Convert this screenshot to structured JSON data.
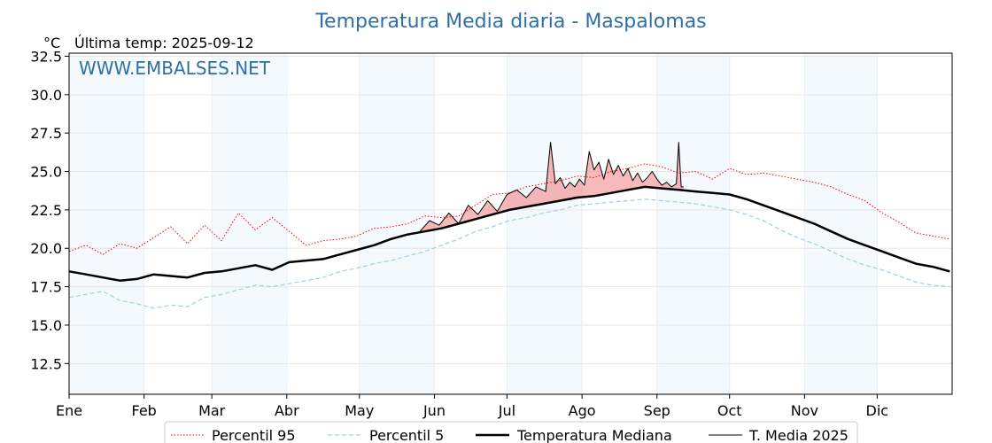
{
  "chart_data": {
    "type": "line",
    "title": "Temperatura Media diaria - Maspalomas",
    "unit_label": "°C",
    "last_temp_label": "Última temp: 2025-09-12",
    "watermark": "WWW.EMBALSES.NET",
    "ylim": [
      10.5,
      32.7
    ],
    "yticks": [
      12.5,
      15.0,
      17.5,
      20.0,
      22.5,
      25.0,
      27.5,
      30.0,
      32.5
    ],
    "xlim": [
      1,
      366
    ],
    "months": [
      {
        "label": "Ene",
        "day": 1
      },
      {
        "label": "Feb",
        "day": 32
      },
      {
        "label": "Mar",
        "day": 60
      },
      {
        "label": "Abr",
        "day": 91
      },
      {
        "label": "May",
        "day": 121
      },
      {
        "label": "Jun",
        "day": 152
      },
      {
        "label": "Jul",
        "day": 182
      },
      {
        "label": "Ago",
        "day": 213
      },
      {
        "label": "Sep",
        "day": 244
      },
      {
        "label": "Oct",
        "day": 274
      },
      {
        "label": "Nov",
        "day": 305
      },
      {
        "label": "Dic",
        "day": 335
      }
    ],
    "grid": true,
    "legend_position": "bottom",
    "series": [
      {
        "name": "Percentil 95",
        "color": "#ff0000",
        "style": "dotted",
        "x": [
          1,
          8,
          15,
          22,
          29,
          36,
          43,
          50,
          57,
          64,
          71,
          78,
          85,
          92,
          99,
          106,
          113,
          120,
          127,
          134,
          141,
          148,
          155,
          162,
          169,
          176,
          183,
          190,
          197,
          204,
          211,
          218,
          225,
          232,
          239,
          246,
          253,
          260,
          267,
          274,
          281,
          288,
          295,
          302,
          309,
          316,
          323,
          330,
          337,
          344,
          351,
          358,
          365
        ],
        "values": [
          19.8,
          20.2,
          19.6,
          20.3,
          20.0,
          20.7,
          21.4,
          20.3,
          21.5,
          20.5,
          22.3,
          21.2,
          22.0,
          21.1,
          20.2,
          20.5,
          20.6,
          20.8,
          21.3,
          21.4,
          21.6,
          22.1,
          22.0,
          22.1,
          22.8,
          23.5,
          23.6,
          24.0,
          24.2,
          24.4,
          24.7,
          24.6,
          25.0,
          25.2,
          25.5,
          25.3,
          24.9,
          25.0,
          24.5,
          25.2,
          24.8,
          24.9,
          24.7,
          24.5,
          24.3,
          24.0,
          23.5,
          23.1,
          22.3,
          21.7,
          21.0,
          20.8,
          20.6
        ]
      },
      {
        "name": "Percentil 5",
        "color": "#9fd0e0",
        "style": "dashed",
        "x": [
          1,
          8,
          15,
          22,
          29,
          36,
          43,
          50,
          57,
          64,
          71,
          78,
          85,
          92,
          99,
          106,
          113,
          120,
          127,
          134,
          141,
          148,
          155,
          162,
          169,
          176,
          183,
          190,
          197,
          204,
          211,
          218,
          225,
          232,
          239,
          246,
          253,
          260,
          267,
          274,
          281,
          288,
          295,
          302,
          309,
          316,
          323,
          330,
          337,
          344,
          351,
          358,
          365
        ],
        "values": [
          16.8,
          17.0,
          17.2,
          16.6,
          16.4,
          16.1,
          16.3,
          16.2,
          16.8,
          17.0,
          17.3,
          17.6,
          17.5,
          17.7,
          17.9,
          18.1,
          18.5,
          18.7,
          19.0,
          19.2,
          19.5,
          19.8,
          20.2,
          20.6,
          21.1,
          21.4,
          21.8,
          22.0,
          22.3,
          22.5,
          22.8,
          22.9,
          23.0,
          23.1,
          23.2,
          23.1,
          23.0,
          22.9,
          22.7,
          22.5,
          22.2,
          21.8,
          21.2,
          20.7,
          20.3,
          19.8,
          19.3,
          18.9,
          18.6,
          18.2,
          17.8,
          17.6,
          17.5
        ]
      },
      {
        "name": "Temperatura Mediana",
        "color": "#000000",
        "style": "bold",
        "x": [
          1,
          8,
          15,
          22,
          29,
          36,
          43,
          50,
          57,
          64,
          71,
          78,
          85,
          92,
          99,
          106,
          113,
          120,
          127,
          134,
          141,
          148,
          155,
          162,
          169,
          176,
          183,
          190,
          197,
          204,
          211,
          218,
          225,
          232,
          239,
          246,
          253,
          260,
          267,
          274,
          281,
          288,
          295,
          302,
          309,
          316,
          323,
          330,
          337,
          344,
          351,
          358,
          365
        ],
        "values": [
          18.5,
          18.3,
          18.1,
          17.9,
          18.0,
          18.3,
          18.2,
          18.1,
          18.4,
          18.5,
          18.7,
          18.9,
          18.6,
          19.1,
          19.2,
          19.3,
          19.6,
          19.9,
          20.2,
          20.6,
          20.9,
          21.1,
          21.3,
          21.6,
          21.9,
          22.2,
          22.5,
          22.7,
          22.9,
          23.1,
          23.3,
          23.4,
          23.6,
          23.8,
          24.0,
          23.9,
          23.8,
          23.7,
          23.6,
          23.5,
          23.2,
          22.8,
          22.4,
          22.0,
          21.6,
          21.1,
          20.6,
          20.2,
          19.8,
          19.4,
          19.0,
          18.8,
          18.5
        ]
      },
      {
        "name": "T. Media 2025",
        "color": "#000000",
        "style": "solid",
        "x": [
          146,
          150,
          154,
          158,
          162,
          166,
          170,
          174,
          178,
          182,
          186,
          190,
          194,
          198,
          200,
          202,
          204,
          206,
          208,
          210,
          212,
          214,
          216,
          218,
          220,
          222,
          224,
          226,
          228,
          230,
          232,
          234,
          236,
          238,
          240,
          242,
          244,
          246,
          248,
          250,
          252,
          253,
          254,
          255
        ],
        "values": [
          21.1,
          21.8,
          21.5,
          22.3,
          21.6,
          22.8,
          22.2,
          23.1,
          22.4,
          23.5,
          23.8,
          23.3,
          24.0,
          23.7,
          26.9,
          24.2,
          24.6,
          23.9,
          24.3,
          24.0,
          24.5,
          24.1,
          26.3,
          25.1,
          25.6,
          24.5,
          25.8,
          24.8,
          25.4,
          24.7,
          25.2,
          24.4,
          24.9,
          24.3,
          24.6,
          25.0,
          24.5,
          24.1,
          24.3,
          24.0,
          24.2,
          26.9,
          24.0,
          24.0
        ]
      }
    ]
  }
}
